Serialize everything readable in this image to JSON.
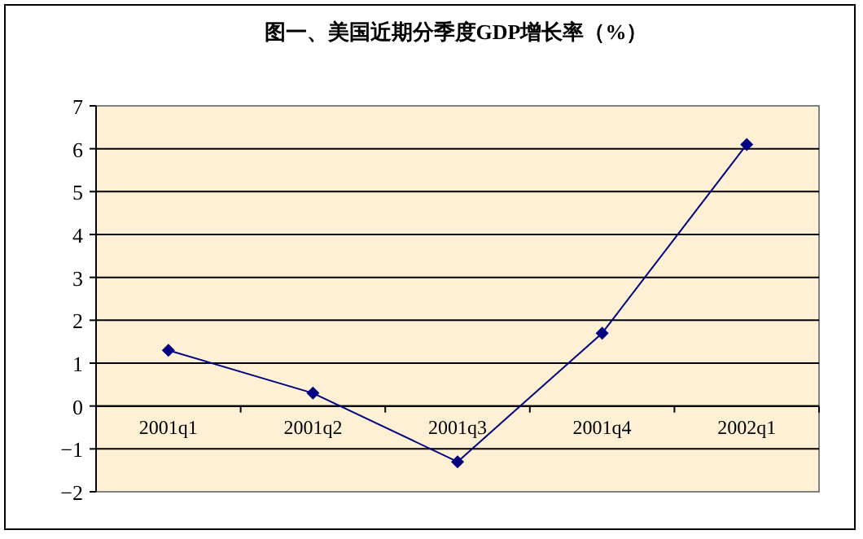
{
  "chart_data": {
    "type": "line",
    "title": "图一、美国近期分季度GDP增长率（%）",
    "categories": [
      "2001q1",
      "2001q2",
      "2001q3",
      "2001q4",
      "2002q1"
    ],
    "series": [
      {
        "color": "#000080",
        "values": [
          1.3,
          0.3,
          -1.3,
          1.7,
          6.1
        ]
      }
    ],
    "ylim": [
      -2,
      7
    ],
    "yticks": [
      -2,
      -1,
      0,
      1,
      2,
      3,
      4,
      5,
      6,
      7
    ],
    "grid": "y",
    "marker": "diamond",
    "line_style": "solid"
  }
}
